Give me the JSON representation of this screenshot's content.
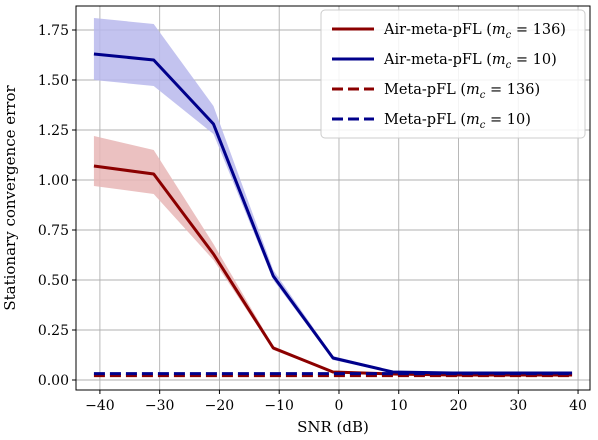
{
  "chart_data": {
    "type": "line",
    "title": "",
    "xlabel": "SNR (dB)",
    "ylabel": "Stationary convergence error",
    "xlim": [
      -44,
      42
    ],
    "ylim": [
      -0.05,
      1.87
    ],
    "xticks": [
      -40,
      -30,
      -20,
      -10,
      0,
      10,
      20,
      30,
      40
    ],
    "xtick_labels": [
      "−40",
      "−30",
      "−20",
      "−10",
      "0",
      "10",
      "20",
      "30",
      "40"
    ],
    "yticks": [
      0.0,
      0.25,
      0.5,
      0.75,
      1.0,
      1.25,
      1.5,
      1.75
    ],
    "ytick_labels": [
      "0.00",
      "0.25",
      "0.50",
      "0.75",
      "1.00",
      "1.25",
      "1.50",
      "1.75"
    ],
    "grid": true,
    "legend_position": "top-right",
    "series": [
      {
        "name": "Air-meta-pFL (m_c = 136)",
        "legend_main": "Air-meta-pFL (",
        "legend_var": "m",
        "legend_sub": "c",
        "legend_tail": " = 136)",
        "color": "#8b0000",
        "style": "solid",
        "x": [
          -41,
          -31,
          -21,
          -11,
          -1,
          9,
          19,
          29,
          39
        ],
        "y": [
          1.07,
          1.03,
          0.63,
          0.16,
          0.04,
          0.03,
          0.025,
          0.025,
          0.025
        ],
        "lower": [
          0.97,
          0.93,
          0.6,
          0.15,
          0.035,
          0.025,
          0.02,
          0.02,
          0.02
        ],
        "upper": [
          1.22,
          1.15,
          0.68,
          0.17,
          0.045,
          0.035,
          0.03,
          0.03,
          0.03
        ]
      },
      {
        "name": "Air-meta-pFL (m_c = 10)",
        "legend_main": "Air-meta-pFL (",
        "legend_var": "m",
        "legend_sub": "c",
        "legend_tail": " = 10)",
        "color": "#00008b",
        "style": "solid",
        "x": [
          -41,
          -31,
          -21,
          -11,
          -1,
          9,
          19,
          29,
          39
        ],
        "y": [
          1.63,
          1.6,
          1.28,
          0.52,
          0.11,
          0.04,
          0.035,
          0.035,
          0.035
        ],
        "lower": [
          1.5,
          1.47,
          1.23,
          0.5,
          0.1,
          0.035,
          0.03,
          0.03,
          0.03
        ],
        "upper": [
          1.81,
          1.78,
          1.37,
          0.55,
          0.12,
          0.045,
          0.04,
          0.04,
          0.04
        ]
      },
      {
        "name": "Meta-pFL (m_c = 136)",
        "legend_main": "Meta-pFL (",
        "legend_var": "m",
        "legend_sub": "c",
        "legend_tail": " = 136)",
        "color": "#8b0000",
        "style": "dashed",
        "x": [
          -41,
          39
        ],
        "y": [
          0.022,
          0.022
        ]
      },
      {
        "name": "Meta-pFL (m_c = 10)",
        "legend_main": "Meta-pFL (",
        "legend_var": "m",
        "legend_sub": "c",
        "legend_tail": " = 10)",
        "color": "#00008b",
        "style": "dashed",
        "x": [
          -41,
          39
        ],
        "y": [
          0.032,
          0.032
        ]
      }
    ],
    "band_colors": {
      "#8b0000": "#e8b6b6",
      "#00008b": "#b9b9ec"
    }
  }
}
